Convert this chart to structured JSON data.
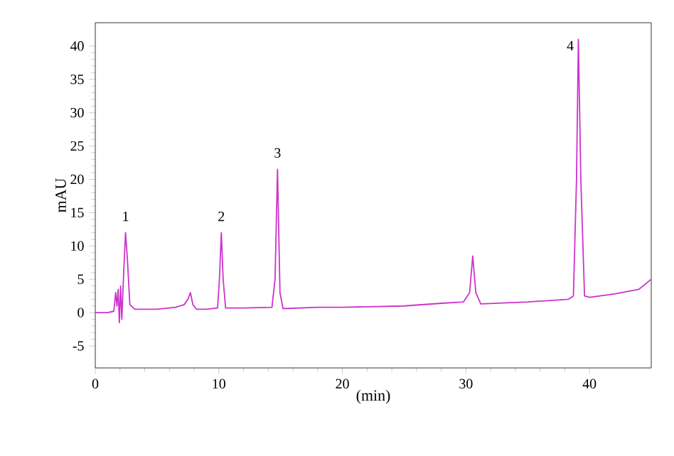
{
  "chart_data": {
    "type": "line",
    "xlabel": "(min)",
    "ylabel": "mAU",
    "xlim": [
      0,
      45
    ],
    "ylim": [
      -8.3,
      43.5
    ],
    "xticks": [
      0,
      10,
      20,
      30,
      40
    ],
    "yticks": [
      -5,
      0,
      5,
      10,
      15,
      20,
      25,
      30,
      35,
      40
    ],
    "grid": false,
    "marker": "none",
    "line_style": "solid",
    "annotations": [
      {
        "text": "1",
        "x": 2.45,
        "y": 12
      },
      {
        "text": "2",
        "x": 10.2,
        "y": 12
      },
      {
        "text": "3",
        "x": 14.75,
        "y": 21.5
      },
      {
        "text": "4",
        "x": 39.1,
        "y": 41
      }
    ],
    "series": [
      {
        "color": "#cc33cc",
        "x": [
          0,
          1.0,
          1.5,
          1.65,
          1.75,
          1.85,
          1.95,
          2.05,
          2.15,
          2.3,
          2.45,
          2.6,
          2.8,
          3.2,
          5,
          6.5,
          7.2,
          7.5,
          7.7,
          7.9,
          8.2,
          9,
          9.9,
          10.05,
          10.2,
          10.35,
          10.55,
          12,
          14.3,
          14.55,
          14.75,
          14.95,
          15.2,
          18,
          20,
          25,
          28,
          29.8,
          30.3,
          30.55,
          30.8,
          31.2,
          35,
          38.3,
          38.7,
          38.95,
          39.1,
          39.3,
          39.6,
          40,
          42,
          44,
          45
        ],
        "values": [
          0,
          0,
          0.2,
          3,
          1,
          3.5,
          -1.5,
          4,
          -1,
          6,
          12,
          8,
          1.2,
          0.5,
          0.5,
          0.8,
          1.2,
          2,
          3,
          1.2,
          0.5,
          0.5,
          0.7,
          5,
          12,
          5,
          0.7,
          0.7,
          0.8,
          5,
          21.5,
          3,
          0.6,
          0.8,
          0.8,
          1,
          1.4,
          1.6,
          3,
          8.5,
          3,
          1.3,
          1.6,
          2,
          2.5,
          20,
          41,
          20,
          2.5,
          2.3,
          2.8,
          3.5,
          5
        ]
      }
    ]
  }
}
